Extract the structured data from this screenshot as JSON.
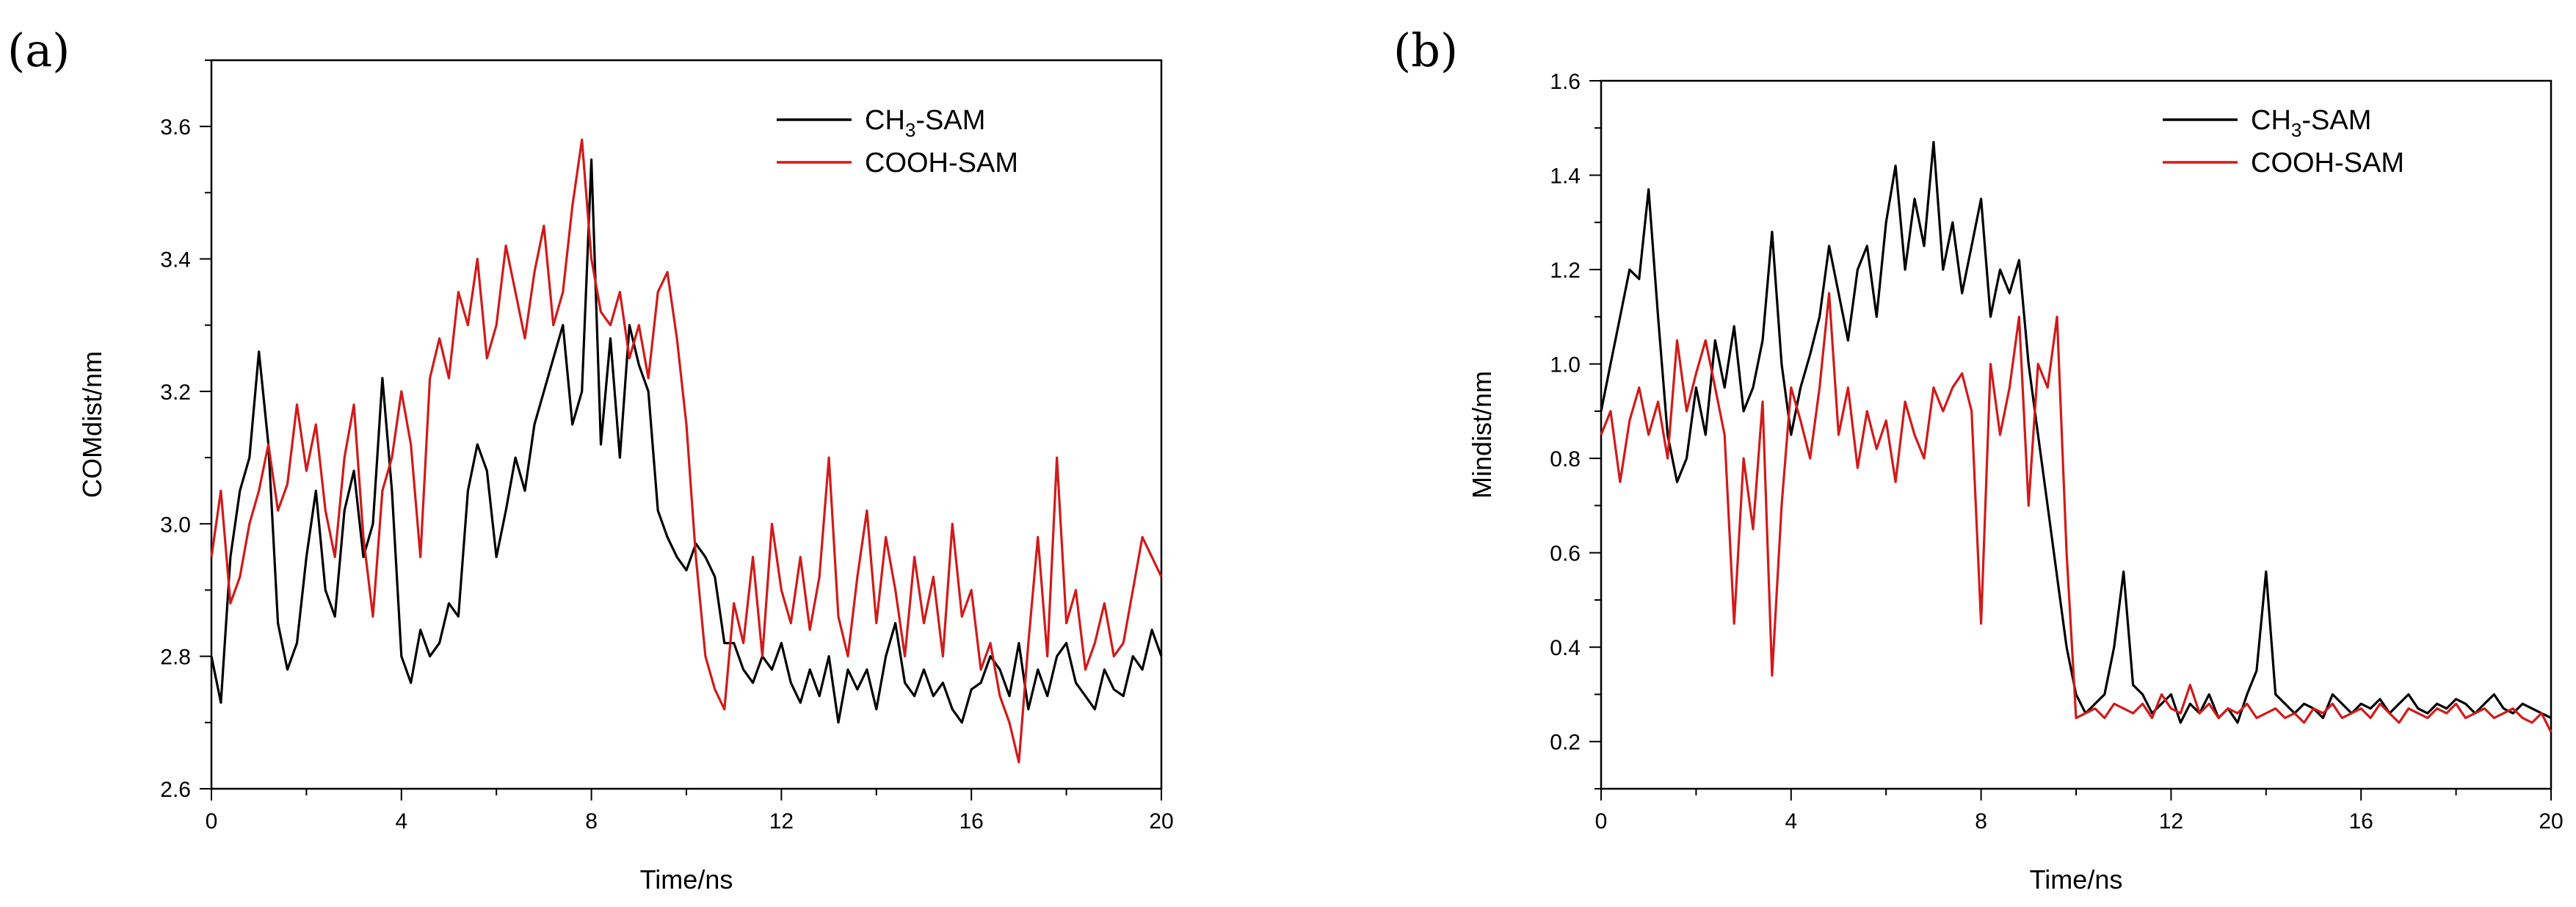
{
  "chart_data": [
    {
      "panel_label": "(a)",
      "type": "line",
      "title": "",
      "xlabel": "Time/ns",
      "ylabel": "COMdist/nm",
      "xlim": [
        0,
        20
      ],
      "ylim": [
        2.6,
        3.7
      ],
      "xticks": [
        0,
        4,
        8,
        12,
        16,
        20
      ],
      "xtick_labels": [
        "0",
        "4",
        "8",
        "12",
        "16",
        "20"
      ],
      "yticks": [
        2.6,
        2.8,
        3.0,
        3.2,
        3.4,
        3.6
      ],
      "ytick_labels": [
        "2.6",
        "2.8",
        "3.0",
        "3.2",
        "3.4",
        "3.6"
      ],
      "legend_position": "top-right",
      "series": [
        {
          "name": "CH3-SAM",
          "legend_main": "CH",
          "legend_sub": "3",
          "legend_rest": "-SAM",
          "color": "#000000",
          "x": [
            0,
            0.2,
            0.4,
            0.6,
            0.8,
            1.0,
            1.2,
            1.4,
            1.6,
            1.8,
            2.0,
            2.2,
            2.4,
            2.6,
            2.8,
            3.0,
            3.2,
            3.4,
            3.6,
            3.8,
            4.0,
            4.2,
            4.4,
            4.6,
            4.8,
            5.0,
            5.2,
            5.4,
            5.6,
            5.8,
            6.0,
            6.2,
            6.4,
            6.6,
            6.8,
            7.0,
            7.2,
            7.4,
            7.6,
            7.8,
            8.0,
            8.2,
            8.4,
            8.6,
            8.8,
            9.0,
            9.2,
            9.4,
            9.6,
            9.8,
            10.0,
            10.2,
            10.4,
            10.6,
            10.8,
            11.0,
            11.2,
            11.4,
            11.6,
            11.8,
            12.0,
            12.2,
            12.4,
            12.6,
            12.8,
            13.0,
            13.2,
            13.4,
            13.6,
            13.8,
            14.0,
            14.2,
            14.4,
            14.6,
            14.8,
            15.0,
            15.2,
            15.4,
            15.6,
            15.8,
            16.0,
            16.2,
            16.4,
            16.6,
            16.8,
            17.0,
            17.2,
            17.4,
            17.6,
            17.8,
            18.0,
            18.2,
            18.4,
            18.6,
            18.8,
            19.0,
            19.2,
            19.4,
            19.6,
            19.8,
            20.0
          ],
          "y": [
            2.8,
            2.73,
            2.95,
            3.05,
            3.1,
            3.26,
            3.12,
            2.85,
            2.78,
            2.82,
            2.95,
            3.05,
            2.9,
            2.86,
            3.02,
            3.08,
            2.95,
            3.0,
            3.22,
            3.05,
            2.8,
            2.76,
            2.84,
            2.8,
            2.82,
            2.88,
            2.86,
            3.05,
            3.12,
            3.08,
            2.95,
            3.02,
            3.1,
            3.05,
            3.15,
            3.2,
            3.25,
            3.3,
            3.15,
            3.2,
            3.55,
            3.12,
            3.28,
            3.1,
            3.3,
            3.24,
            3.2,
            3.02,
            2.98,
            2.95,
            2.93,
            2.97,
            2.95,
            2.92,
            2.82,
            2.82,
            2.78,
            2.76,
            2.8,
            2.78,
            2.82,
            2.76,
            2.73,
            2.78,
            2.74,
            2.8,
            2.7,
            2.78,
            2.75,
            2.78,
            2.72,
            2.8,
            2.85,
            2.76,
            2.74,
            2.78,
            2.74,
            2.76,
            2.72,
            2.7,
            2.75,
            2.76,
            2.8,
            2.78,
            2.74,
            2.82,
            2.72,
            2.78,
            2.74,
            2.8,
            2.82,
            2.76,
            2.74,
            2.72,
            2.78,
            2.75,
            2.74,
            2.8,
            2.78,
            2.84,
            2.8
          ]
        },
        {
          "name": "COOH-SAM",
          "legend_main": "COOH-SAM",
          "legend_sub": "",
          "legend_rest": "",
          "color": "#d11a1a",
          "x": [
            0,
            0.2,
            0.4,
            0.6,
            0.8,
            1.0,
            1.2,
            1.4,
            1.6,
            1.8,
            2.0,
            2.2,
            2.4,
            2.6,
            2.8,
            3.0,
            3.2,
            3.4,
            3.6,
            3.8,
            4.0,
            4.2,
            4.4,
            4.6,
            4.8,
            5.0,
            5.2,
            5.4,
            5.6,
            5.8,
            6.0,
            6.2,
            6.4,
            6.6,
            6.8,
            7.0,
            7.2,
            7.4,
            7.6,
            7.8,
            8.0,
            8.2,
            8.4,
            8.6,
            8.8,
            9.0,
            9.2,
            9.4,
            9.6,
            9.8,
            10.0,
            10.2,
            10.4,
            10.6,
            10.8,
            11.0,
            11.2,
            11.4,
            11.6,
            11.8,
            12.0,
            12.2,
            12.4,
            12.6,
            12.8,
            13.0,
            13.2,
            13.4,
            13.6,
            13.8,
            14.0,
            14.2,
            14.4,
            14.6,
            14.8,
            15.0,
            15.2,
            15.4,
            15.6,
            15.8,
            16.0,
            16.2,
            16.4,
            16.6,
            16.8,
            17.0,
            17.2,
            17.4,
            17.6,
            17.8,
            18.0,
            18.2,
            18.4,
            18.6,
            18.8,
            19.0,
            19.2,
            19.4,
            19.6,
            19.8,
            20.0
          ],
          "y": [
            2.95,
            3.05,
            2.88,
            2.92,
            3.0,
            3.05,
            3.12,
            3.02,
            3.06,
            3.18,
            3.08,
            3.15,
            3.02,
            2.95,
            3.1,
            3.18,
            2.98,
            2.86,
            3.05,
            3.1,
            3.2,
            3.12,
            2.95,
            3.22,
            3.28,
            3.22,
            3.35,
            3.3,
            3.4,
            3.25,
            3.3,
            3.42,
            3.35,
            3.28,
            3.38,
            3.45,
            3.3,
            3.35,
            3.48,
            3.58,
            3.4,
            3.32,
            3.3,
            3.35,
            3.25,
            3.3,
            3.22,
            3.35,
            3.38,
            3.28,
            3.15,
            2.95,
            2.8,
            2.75,
            2.72,
            2.88,
            2.82,
            2.95,
            2.8,
            3.0,
            2.9,
            2.85,
            2.95,
            2.84,
            2.92,
            3.1,
            2.86,
            2.8,
            2.92,
            3.02,
            2.85,
            2.98,
            2.9,
            2.8,
            2.95,
            2.85,
            2.92,
            2.8,
            3.0,
            2.86,
            2.9,
            2.78,
            2.82,
            2.74,
            2.7,
            2.64,
            2.82,
            2.98,
            2.8,
            3.1,
            2.85,
            2.9,
            2.78,
            2.82,
            2.88,
            2.8,
            2.82,
            2.9,
            2.98,
            2.95,
            2.92
          ]
        }
      ]
    },
    {
      "panel_label": "(b)",
      "type": "line",
      "title": "",
      "xlabel": "Time/ns",
      "ylabel": "Mindist/nm",
      "xlim": [
        0,
        20
      ],
      "ylim": [
        0.1,
        1.6
      ],
      "xticks": [
        0,
        4,
        8,
        12,
        16,
        20
      ],
      "xtick_labels": [
        "0",
        "4",
        "8",
        "12",
        "16",
        "20"
      ],
      "yticks": [
        0.2,
        0.4,
        0.6,
        0.8,
        1.0,
        1.2,
        1.4,
        1.6
      ],
      "ytick_labels": [
        "0.2",
        "0.4",
        "0.6",
        "0.8",
        "1.0",
        "1.2",
        "1.4",
        "1.6"
      ],
      "legend_position": "top-right",
      "series": [
        {
          "name": "CH3-SAM",
          "legend_main": "CH",
          "legend_sub": "3",
          "legend_rest": "-SAM",
          "color": "#000000",
          "x": [
            0,
            0.2,
            0.4,
            0.6,
            0.8,
            1.0,
            1.2,
            1.4,
            1.6,
            1.8,
            2.0,
            2.2,
            2.4,
            2.6,
            2.8,
            3.0,
            3.2,
            3.4,
            3.6,
            3.8,
            4.0,
            4.2,
            4.4,
            4.6,
            4.8,
            5.0,
            5.2,
            5.4,
            5.6,
            5.8,
            6.0,
            6.2,
            6.4,
            6.6,
            6.8,
            7.0,
            7.2,
            7.4,
            7.6,
            7.8,
            8.0,
            8.2,
            8.4,
            8.6,
            8.8,
            9.0,
            9.2,
            9.4,
            9.6,
            9.8,
            10.0,
            10.2,
            10.4,
            10.6,
            10.8,
            11.0,
            11.2,
            11.4,
            11.6,
            11.8,
            12.0,
            12.2,
            12.4,
            12.6,
            12.8,
            13.0,
            13.2,
            13.4,
            13.6,
            13.8,
            14.0,
            14.2,
            14.4,
            14.6,
            14.8,
            15.0,
            15.2,
            15.4,
            15.6,
            15.8,
            16.0,
            16.2,
            16.4,
            16.6,
            16.8,
            17.0,
            17.2,
            17.4,
            17.6,
            17.8,
            18.0,
            18.2,
            18.4,
            18.6,
            18.8,
            19.0,
            19.2,
            19.4,
            19.6,
            19.8,
            20.0
          ],
          "y": [
            0.9,
            1.0,
            1.1,
            1.2,
            1.18,
            1.37,
            1.1,
            0.85,
            0.75,
            0.8,
            0.95,
            0.85,
            1.05,
            0.95,
            1.08,
            0.9,
            0.95,
            1.05,
            1.28,
            1.0,
            0.85,
            0.95,
            1.02,
            1.1,
            1.25,
            1.15,
            1.05,
            1.2,
            1.25,
            1.1,
            1.3,
            1.42,
            1.2,
            1.35,
            1.25,
            1.47,
            1.2,
            1.3,
            1.15,
            1.25,
            1.35,
            1.1,
            1.2,
            1.15,
            1.22,
            1.0,
            0.85,
            0.7,
            0.55,
            0.4,
            0.3,
            0.26,
            0.28,
            0.3,
            0.4,
            0.56,
            0.32,
            0.3,
            0.26,
            0.28,
            0.3,
            0.24,
            0.28,
            0.26,
            0.3,
            0.25,
            0.27,
            0.24,
            0.3,
            0.35,
            0.56,
            0.3,
            0.28,
            0.26,
            0.28,
            0.27,
            0.25,
            0.3,
            0.28,
            0.26,
            0.28,
            0.27,
            0.29,
            0.26,
            0.28,
            0.3,
            0.27,
            0.26,
            0.28,
            0.27,
            0.29,
            0.28,
            0.26,
            0.28,
            0.3,
            0.27,
            0.26,
            0.28,
            0.27,
            0.26,
            0.25
          ]
        },
        {
          "name": "COOH-SAM",
          "legend_main": "COOH-SAM",
          "legend_sub": "",
          "legend_rest": "",
          "color": "#d11a1a",
          "x": [
            0,
            0.2,
            0.4,
            0.6,
            0.8,
            1.0,
            1.2,
            1.4,
            1.6,
            1.8,
            2.0,
            2.2,
            2.4,
            2.6,
            2.8,
            3.0,
            3.2,
            3.4,
            3.6,
            3.8,
            4.0,
            4.2,
            4.4,
            4.6,
            4.8,
            5.0,
            5.2,
            5.4,
            5.6,
            5.8,
            6.0,
            6.2,
            6.4,
            6.6,
            6.8,
            7.0,
            7.2,
            7.4,
            7.6,
            7.8,
            8.0,
            8.2,
            8.4,
            8.6,
            8.8,
            9.0,
            9.2,
            9.4,
            9.6,
            9.8,
            10.0,
            10.2,
            10.4,
            10.6,
            10.8,
            11.0,
            11.2,
            11.4,
            11.6,
            11.8,
            12.0,
            12.2,
            12.4,
            12.6,
            12.8,
            13.0,
            13.2,
            13.4,
            13.6,
            13.8,
            14.0,
            14.2,
            14.4,
            14.6,
            14.8,
            15.0,
            15.2,
            15.4,
            15.6,
            15.8,
            16.0,
            16.2,
            16.4,
            16.6,
            16.8,
            17.0,
            17.2,
            17.4,
            17.6,
            17.8,
            18.0,
            18.2,
            18.4,
            18.6,
            18.8,
            19.0,
            19.2,
            19.4,
            19.6,
            19.8,
            20.0
          ],
          "y": [
            0.85,
            0.9,
            0.75,
            0.88,
            0.95,
            0.85,
            0.92,
            0.8,
            1.05,
            0.9,
            0.98,
            1.05,
            0.95,
            0.85,
            0.45,
            0.8,
            0.65,
            0.92,
            0.34,
            0.7,
            0.95,
            0.88,
            0.8,
            0.95,
            1.15,
            0.85,
            0.95,
            0.78,
            0.9,
            0.82,
            0.88,
            0.75,
            0.92,
            0.85,
            0.8,
            0.95,
            0.9,
            0.95,
            0.98,
            0.9,
            0.45,
            1.0,
            0.85,
            0.95,
            1.1,
            0.7,
            1.0,
            0.95,
            1.1,
            0.6,
            0.25,
            0.26,
            0.27,
            0.25,
            0.28,
            0.27,
            0.26,
            0.28,
            0.25,
            0.3,
            0.27,
            0.26,
            0.32,
            0.26,
            0.28,
            0.25,
            0.27,
            0.26,
            0.28,
            0.25,
            0.26,
            0.27,
            0.25,
            0.26,
            0.24,
            0.27,
            0.26,
            0.28,
            0.25,
            0.26,
            0.27,
            0.25,
            0.28,
            0.26,
            0.24,
            0.27,
            0.26,
            0.25,
            0.27,
            0.26,
            0.28,
            0.25,
            0.26,
            0.27,
            0.25,
            0.26,
            0.27,
            0.25,
            0.24,
            0.26,
            0.22
          ]
        }
      ]
    }
  ]
}
